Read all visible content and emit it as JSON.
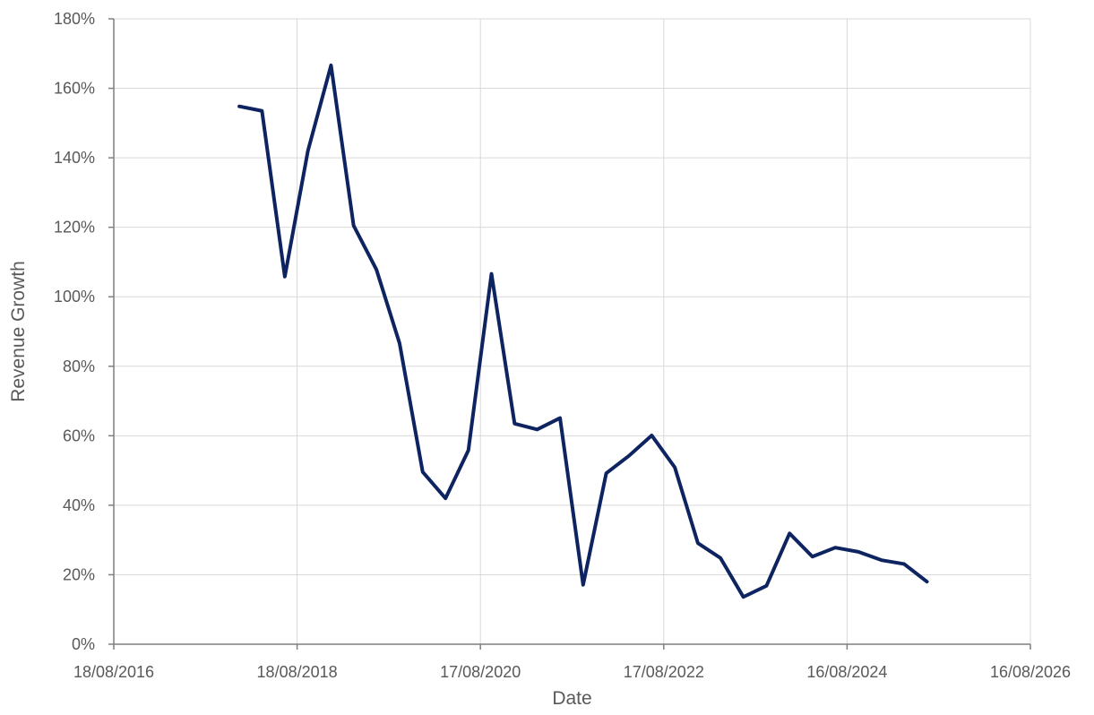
{
  "chart_data": {
    "type": "line",
    "xlabel": "Date",
    "ylabel": "Revenue Growth",
    "x_axis": {
      "scale": "date",
      "range": [
        "2016-08-18",
        "2026-08-16"
      ],
      "ticks": [
        "2016-08-18",
        "2018-08-18",
        "2020-08-17",
        "2022-08-17",
        "2024-08-16",
        "2026-08-16"
      ],
      "tick_labels": [
        "18/08/2016",
        "18/08/2018",
        "17/08/2020",
        "17/08/2022",
        "16/08/2024",
        "16/08/2026"
      ]
    },
    "y_axis": {
      "range": [
        0,
        180
      ],
      "unit": "%",
      "ticks": [
        0,
        20,
        40,
        60,
        80,
        100,
        120,
        140,
        160,
        180
      ],
      "tick_labels": [
        "0%",
        "20%",
        "40%",
        "60%",
        "80%",
        "100%",
        "120%",
        "140%",
        "160%",
        "180%"
      ]
    },
    "grid": true,
    "legend": "none",
    "series": [
      {
        "color": "#0e2461",
        "points": [
          {
            "x": "2017-12-31",
            "y": 154.8
          },
          {
            "x": "2018-03-31",
            "y": 153.5
          },
          {
            "x": "2018-06-30",
            "y": 105.8
          },
          {
            "x": "2018-09-30",
            "y": 142.0
          },
          {
            "x": "2018-12-31",
            "y": 166.6
          },
          {
            "x": "2019-03-31",
            "y": 120.5
          },
          {
            "x": "2019-06-30",
            "y": 107.8
          },
          {
            "x": "2019-09-30",
            "y": 86.6
          },
          {
            "x": "2019-12-31",
            "y": 49.6
          },
          {
            "x": "2020-03-31",
            "y": 42.0
          },
          {
            "x": "2020-06-30",
            "y": 55.8
          },
          {
            "x": "2020-09-30",
            "y": 106.6
          },
          {
            "x": "2020-12-31",
            "y": 63.5
          },
          {
            "x": "2021-03-31",
            "y": 61.8
          },
          {
            "x": "2021-06-30",
            "y": 65.1
          },
          {
            "x": "2021-09-30",
            "y": 17.1
          },
          {
            "x": "2021-12-31",
            "y": 49.2
          },
          {
            "x": "2022-03-31",
            "y": 54.2
          },
          {
            "x": "2022-06-30",
            "y": 60.1
          },
          {
            "x": "2022-09-30",
            "y": 50.9
          },
          {
            "x": "2022-12-31",
            "y": 29.1
          },
          {
            "x": "2023-03-31",
            "y": 24.8
          },
          {
            "x": "2023-06-30",
            "y": 13.6
          },
          {
            "x": "2023-09-30",
            "y": 16.8
          },
          {
            "x": "2023-12-31",
            "y": 31.9
          },
          {
            "x": "2024-03-31",
            "y": 25.2
          },
          {
            "x": "2024-06-30",
            "y": 27.8
          },
          {
            "x": "2024-09-30",
            "y": 26.6
          },
          {
            "x": "2024-12-31",
            "y": 24.2
          },
          {
            "x": "2025-03-31",
            "y": 23.1
          },
          {
            "x": "2025-06-30",
            "y": 18.0
          }
        ]
      }
    ]
  }
}
